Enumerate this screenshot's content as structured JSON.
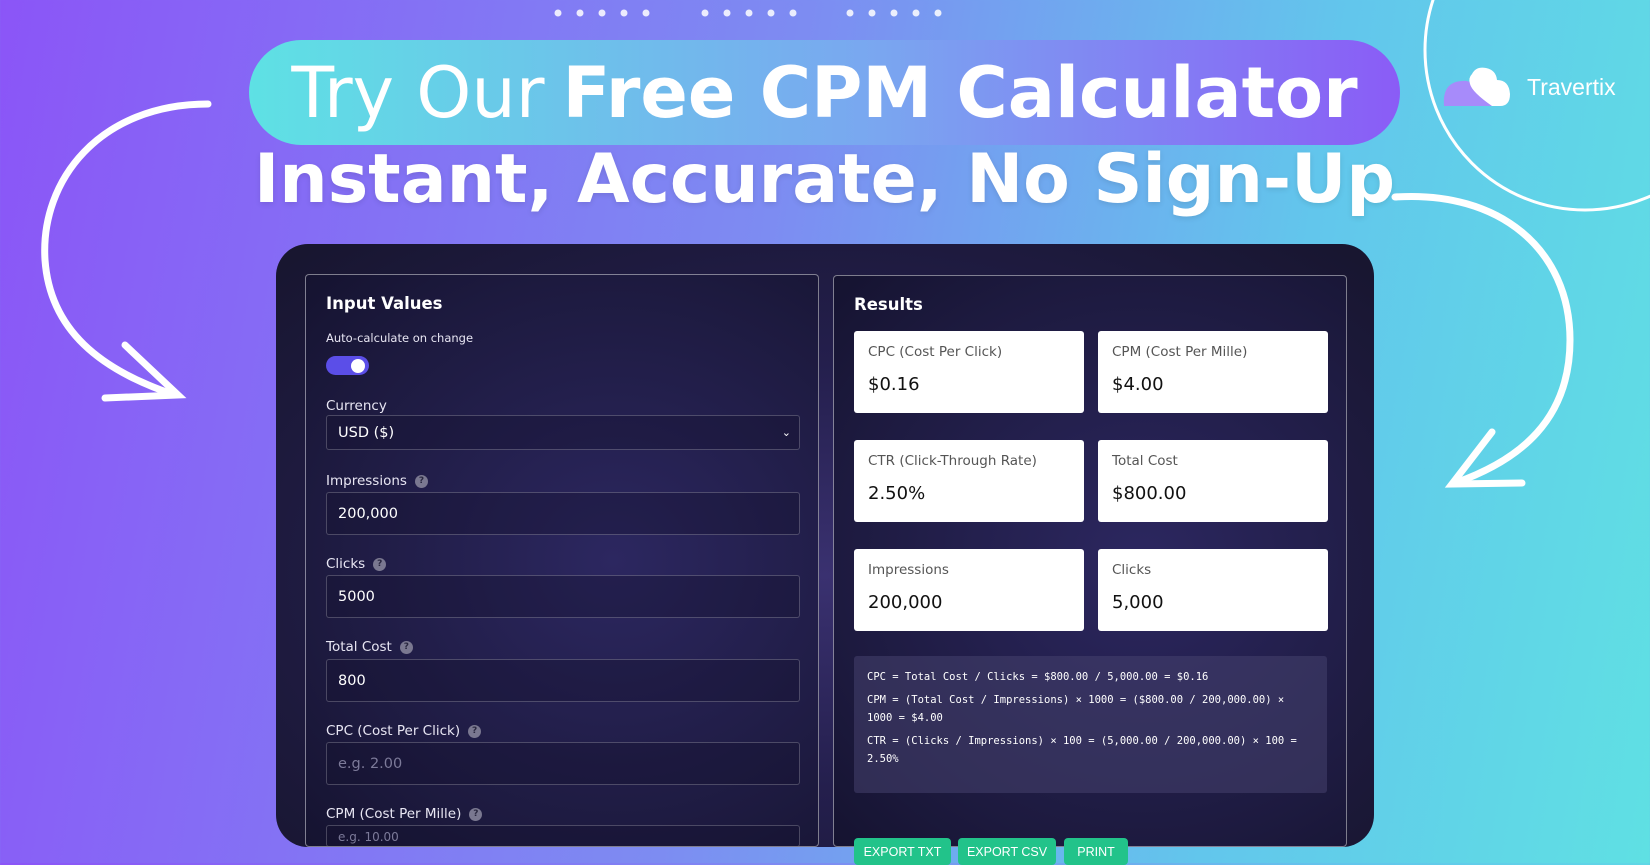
{
  "banner": {
    "title_light": "Try Our",
    "title_bold": "Free CPM Calculator",
    "subtitle": "Instant, Accurate, No Sign-Up",
    "brand": "Travertix"
  },
  "colors": {
    "accent": "#5b4ee8",
    "button": "#22c38a",
    "bg_left": "#8b55f7",
    "bg_right": "#5fe0e3"
  },
  "inputs": {
    "heading": "Input Values",
    "auto_label": "Auto-calculate on change",
    "auto_enabled": true,
    "currency_label": "Currency",
    "currency_value": "USD ($)",
    "fields": [
      {
        "label": "Impressions",
        "value": "200,000",
        "placeholder": ""
      },
      {
        "label": "Clicks",
        "value": "5000",
        "placeholder": ""
      },
      {
        "label": "Total Cost",
        "value": "800",
        "placeholder": ""
      },
      {
        "label": "CPC (Cost Per Click)",
        "value": "",
        "placeholder": "e.g. 2.00"
      },
      {
        "label": "CPM (Cost Per Mille)",
        "value": "",
        "placeholder": "e.g. 10.00"
      }
    ],
    "help_icon": "?"
  },
  "results": {
    "heading": "Results",
    "cards": [
      {
        "label": "CPC (Cost Per Click)",
        "value": "$0.16"
      },
      {
        "label": "CPM (Cost Per Mille)",
        "value": "$4.00"
      },
      {
        "label": "CTR (Click-Through Rate)",
        "value": "2.50%"
      },
      {
        "label": "Total Cost",
        "value": "$800.00"
      },
      {
        "label": "Impressions",
        "value": "200,000"
      },
      {
        "label": "Clicks",
        "value": "5,000"
      }
    ],
    "formulas": [
      "CPC = Total Cost / Clicks = $800.00 / 5,000.00 = $0.16",
      "CPM = (Total Cost / Impressions) × 1000 = ($800.00 / 200,000.00) × 1000 = $4.00",
      "CTR = (Clicks / Impressions) × 100 = (5,000.00 / 200,000.00) × 100 = 2.50%"
    ],
    "buttons": [
      "EXPORT TXT",
      "EXPORT CSV",
      "PRINT"
    ]
  }
}
